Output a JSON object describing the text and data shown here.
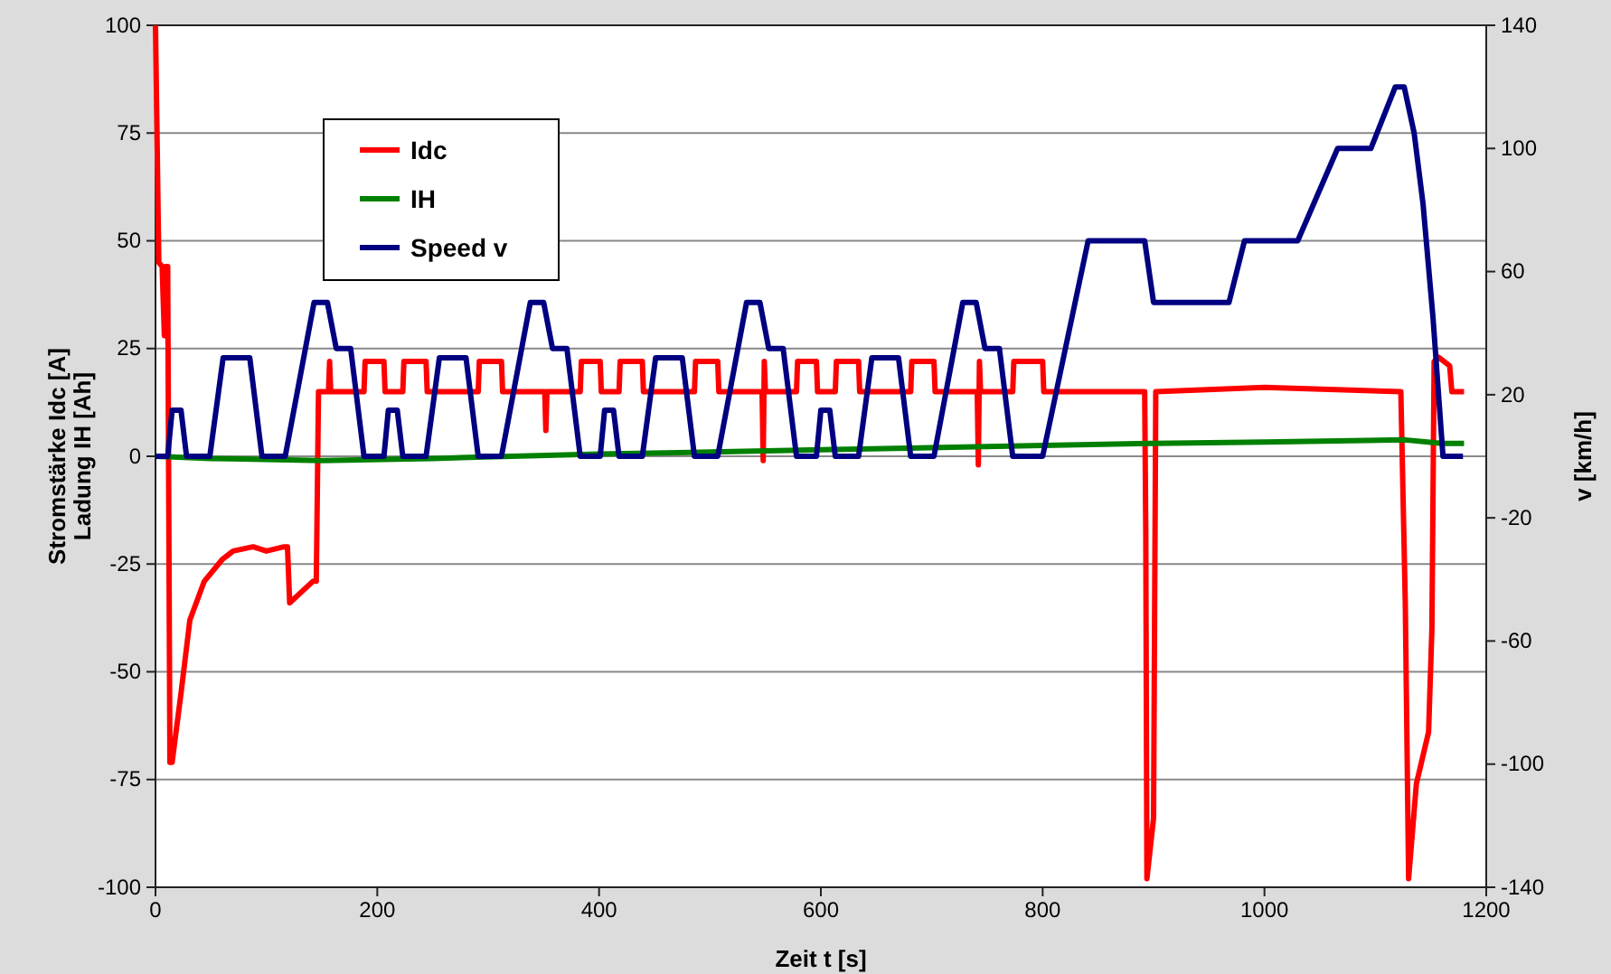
{
  "chart_data": {
    "type": "line",
    "xlabel": "Zeit t [s]",
    "ylabel": "Stromstärke  Idc [A]\nLadung IH [Ah]",
    "y2label": "v [km/h]",
    "xlim": [
      0,
      1200
    ],
    "xticks": [
      0,
      200,
      400,
      600,
      800,
      1000,
      1200
    ],
    "ylim": [
      -100,
      100
    ],
    "yticks": [
      -100,
      -75,
      -50,
      -25,
      0,
      25,
      50,
      75,
      100
    ],
    "y2lim": [
      -140,
      140
    ],
    "y2ticks": [
      -140,
      -100,
      -60,
      -20,
      20,
      60,
      100,
      140
    ],
    "grid": "y",
    "legend": "top left",
    "series": [
      {
        "name": "Idc",
        "color": "#ff0000",
        "x": [
          0,
          3,
          6,
          8,
          9,
          11,
          13,
          15,
          23,
          31,
          44,
          60,
          70,
          88,
          100,
          116,
          119,
          121,
          142,
          145,
          147,
          156,
          157,
          158,
          188,
          189,
          206,
          207,
          223,
          224,
          244,
          245,
          291,
          292,
          312,
          313,
          351,
          352,
          353,
          383,
          384,
          401,
          402,
          418,
          419,
          439,
          440,
          486,
          487,
          507,
          508,
          547,
          548,
          549,
          550,
          578,
          579,
          596,
          597,
          613,
          614,
          634,
          635,
          681,
          682,
          702,
          703,
          741,
          742,
          743,
          744,
          773,
          774,
          800,
          801,
          892,
          893,
          894,
          900,
          902,
          1000,
          1123,
          1127,
          1130,
          1137,
          1148,
          1151,
          1153,
          1157,
          1167,
          1169,
          1180
        ],
        "values": [
          100,
          45,
          44,
          28,
          44,
          44,
          -71,
          -71,
          -55,
          -38,
          -29,
          -24,
          -22,
          -21,
          -22,
          -21,
          -21,
          -34,
          -29,
          -29,
          15,
          15,
          22,
          15,
          15,
          22,
          22,
          15,
          15,
          22,
          22,
          15,
          15,
          22,
          22,
          15,
          15,
          6,
          15,
          15,
          22,
          22,
          15,
          15,
          22,
          22,
          15,
          15,
          22,
          22,
          15,
          15,
          -1,
          22,
          15,
          15,
          22,
          22,
          15,
          15,
          22,
          22,
          15,
          15,
          22,
          22,
          15,
          15,
          -2,
          22,
          15,
          15,
          22,
          22,
          15,
          15,
          -18,
          -98,
          -84,
          15,
          16,
          15,
          -34,
          -98,
          -76,
          -64,
          -40,
          22,
          23,
          21,
          15,
          15
        ]
      },
      {
        "name": "IH",
        "color": "#008000",
        "x": [
          0,
          50,
          150,
          250,
          400,
          600,
          800,
          900,
          1000,
          1127,
          1160,
          1180
        ],
        "values": [
          0,
          -0.5,
          -1,
          -0.5,
          0.5,
          1.5,
          2.5,
          3,
          3.3,
          3.8,
          3,
          3
        ]
      },
      {
        "name": "Speed v",
        "color": "#000080",
        "axis": "y2",
        "x": [
          0,
          11,
          15,
          23,
          28,
          49,
          61,
          85,
          96,
          117,
          143,
          155,
          163,
          176,
          188,
          206,
          210,
          218,
          223,
          244,
          256,
          280,
          291,
          312,
          338,
          350,
          358,
          371,
          383,
          401,
          405,
          413,
          418,
          439,
          451,
          475,
          486,
          507,
          533,
          545,
          553,
          566,
          578,
          596,
          600,
          608,
          613,
          634,
          646,
          670,
          681,
          702,
          728,
          740,
          748,
          761,
          773,
          800,
          841,
          892,
          900,
          968,
          982,
          1030,
          1066,
          1096,
          1118,
          1126,
          1135,
          1143,
          1152,
          1161,
          1179
        ],
        "values": [
          0,
          0,
          15,
          15,
          0,
          0,
          32,
          32,
          0,
          0,
          50,
          50,
          35,
          35,
          0,
          0,
          15,
          15,
          0,
          0,
          32,
          32,
          0,
          0,
          50,
          50,
          35,
          35,
          0,
          0,
          15,
          15,
          0,
          0,
          32,
          32,
          0,
          0,
          50,
          50,
          35,
          35,
          0,
          0,
          15,
          15,
          0,
          0,
          32,
          32,
          0,
          0,
          50,
          50,
          35,
          35,
          0,
          0,
          70,
          70,
          50,
          50,
          70,
          70,
          100,
          100,
          120,
          120,
          105,
          82,
          45,
          0,
          0
        ]
      }
    ]
  }
}
